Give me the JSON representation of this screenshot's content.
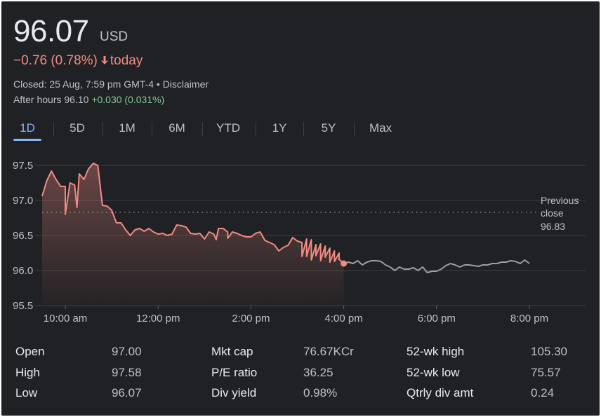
{
  "quote": {
    "price": "96.07",
    "currency": "USD",
    "change": "−0.76 (0.78%)",
    "change_suffix": "today",
    "closed_text": "Closed: 25 Aug, 7:59 pm GMT-4",
    "separator": "•",
    "disclaimer": "Disclaimer",
    "after_hours_label": "After hours",
    "after_hours_price": "96.10",
    "after_hours_change": "+0.030 (0.031%)",
    "colors": {
      "down": "#f28b82",
      "up": "#81c995",
      "after": "#9aa0a6",
      "accent": "#8ab4f8"
    }
  },
  "tabs": [
    {
      "label": "1D",
      "active": true
    },
    {
      "label": "5D",
      "active": false
    },
    {
      "label": "1M",
      "active": false
    },
    {
      "label": "6M",
      "active": false
    },
    {
      "label": "YTD",
      "active": false
    },
    {
      "label": "1Y",
      "active": false
    },
    {
      "label": "5Y",
      "active": false
    },
    {
      "label": "Max",
      "active": false
    }
  ],
  "chart_data": {
    "type": "line",
    "x_unit": "hours",
    "ylim": [
      95.5,
      97.5
    ],
    "yticks": [
      "95.5",
      "96.0",
      "96.5",
      "97.0",
      "97.5"
    ],
    "ytick_values": [
      95.5,
      96.0,
      96.5,
      97.0,
      97.5
    ],
    "xlim": [
      9.5,
      20.25
    ],
    "xticks": [
      "10:00 am",
      "12:00 pm",
      "2:00 pm",
      "4:00 pm",
      "6:00 pm",
      "8:00 pm"
    ],
    "xtick_values": [
      10,
      12,
      14,
      16,
      18,
      20
    ],
    "grid": true,
    "previous_close": {
      "label_lines": [
        "Previous",
        "close",
        "96.83"
      ],
      "value": 96.83
    },
    "close_marker": {
      "x": 16.0,
      "y": 96.1
    },
    "series": [
      {
        "session": "regular",
        "x": [
          9.5,
          9.6,
          9.7,
          9.8,
          9.9,
          10.0,
          10.1,
          10.2,
          10.3,
          10.4,
          10.5,
          10.6,
          10.7,
          10.8,
          10.9,
          11.0,
          11.1,
          11.2,
          11.3,
          11.4,
          11.5,
          11.6,
          11.7,
          11.8,
          11.9,
          12.0,
          12.1,
          12.2,
          12.3,
          12.4,
          12.5,
          12.6,
          12.7,
          12.8,
          12.9,
          13.0,
          13.1,
          13.2,
          13.3,
          13.4,
          13.5,
          13.6,
          13.7,
          13.8,
          13.9,
          14.0,
          14.1,
          14.2,
          14.3,
          14.4,
          14.5,
          14.6,
          14.7,
          14.8,
          14.9,
          15.0,
          15.1,
          15.2,
          15.3,
          15.4,
          15.5,
          15.6,
          15.7,
          15.8,
          15.9,
          16.0
        ],
        "values": [
          97.06,
          97.28,
          97.42,
          97.3,
          97.2,
          97.2,
          97.25,
          97.22,
          97.38,
          97.3,
          97.45,
          97.53,
          97.5,
          96.93,
          96.92,
          96.86,
          96.68,
          96.68,
          96.58,
          96.5,
          96.58,
          96.6,
          96.56,
          96.6,
          96.55,
          96.52,
          96.53,
          96.5,
          96.52,
          96.65,
          96.64,
          96.62,
          96.53,
          96.52,
          96.53,
          96.45,
          96.55,
          96.52,
          96.6,
          96.6,
          96.55,
          96.55,
          96.53,
          96.5,
          96.48,
          96.48,
          96.53,
          96.55,
          96.43,
          96.4,
          96.37,
          96.28,
          96.33,
          96.36,
          96.47,
          96.42,
          96.4,
          96.45,
          96.44,
          96.37,
          96.38,
          96.35,
          96.32,
          96.28,
          96.25,
          96.1
        ]
      },
      {
        "session": "after-hours",
        "x": [
          16.0,
          16.1,
          16.2,
          16.3,
          16.4,
          16.5,
          16.6,
          16.7,
          16.8,
          16.9,
          17.0,
          17.1,
          17.2,
          17.3,
          17.4,
          17.5,
          17.6,
          17.7,
          17.8,
          17.9,
          18.0,
          18.1,
          18.2,
          18.3,
          18.4,
          18.5,
          18.6,
          18.7,
          18.8,
          18.9,
          19.0,
          19.1,
          19.2,
          19.3,
          19.4,
          19.5,
          19.6,
          19.7,
          19.8,
          19.9,
          20.0
        ],
        "values": [
          96.1,
          96.12,
          96.1,
          96.14,
          96.08,
          96.12,
          96.14,
          96.14,
          96.13,
          96.08,
          96.05,
          96.0,
          96.05,
          96.02,
          96.02,
          96.04,
          96.0,
          96.05,
          95.97,
          95.99,
          95.99,
          96.02,
          96.07,
          96.1,
          96.08,
          96.05,
          96.08,
          96.08,
          96.07,
          96.06,
          96.08,
          96.08,
          96.1,
          96.1,
          96.12,
          96.12,
          96.14,
          96.13,
          96.1,
          96.15,
          96.1
        ]
      }
    ],
    "session_detail": [
      [
        10.0,
        96.8
      ],
      [
        10.25,
        96.9
      ],
      [
        13.25,
        96.44
      ],
      [
        13.5,
        96.46
      ],
      [
        15.1,
        96.2
      ],
      [
        15.2,
        96.2
      ],
      [
        15.3,
        96.15
      ],
      [
        15.4,
        96.21
      ],
      [
        15.5,
        96.14
      ],
      [
        15.6,
        96.19
      ],
      [
        15.7,
        96.12
      ],
      [
        15.8,
        96.13
      ],
      [
        15.9,
        96.16
      ]
    ]
  },
  "stats": [
    [
      {
        "label": "Open",
        "value": "97.00"
      },
      {
        "label": "Mkt cap",
        "value": "76.67KCr"
      },
      {
        "label": "52-wk high",
        "value": "105.30"
      }
    ],
    [
      {
        "label": "High",
        "value": "97.58"
      },
      {
        "label": "P/E ratio",
        "value": "36.25"
      },
      {
        "label": "52-wk low",
        "value": "75.57"
      }
    ],
    [
      {
        "label": "Low",
        "value": "96.07"
      },
      {
        "label": "Div yield",
        "value": "0.98%"
      },
      {
        "label": "Qtrly div amt",
        "value": "0.24"
      }
    ]
  ]
}
